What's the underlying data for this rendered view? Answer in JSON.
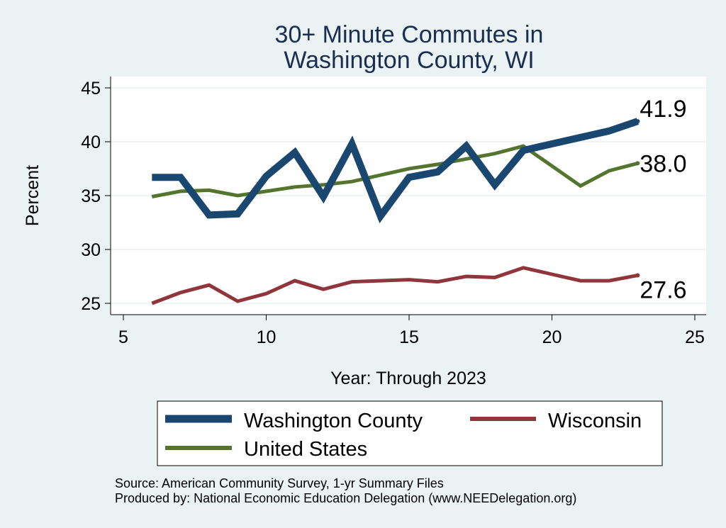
{
  "chart_data": {
    "type": "line",
    "title_line1": "30+ Minute Commutes in",
    "title_line2": "Washington County, WI",
    "xlabel": "Year: Through 2023",
    "ylabel": "Percent",
    "xlim": [
      5,
      25
    ],
    "ylim": [
      24.3,
      46
    ],
    "xticks": [
      5,
      10,
      15,
      20,
      25
    ],
    "yticks": [
      25,
      30,
      35,
      40,
      45
    ],
    "x": [
      6,
      7,
      8,
      9,
      10,
      11,
      12,
      13,
      14,
      15,
      16,
      17,
      18,
      19,
      20,
      21,
      22,
      23
    ],
    "grid": true,
    "series": [
      {
        "name": "Washington County",
        "color": "#1a476f",
        "values": [
          36.7,
          36.7,
          33.2,
          33.3,
          36.8,
          39.0,
          34.9,
          39.8,
          33.1,
          36.7,
          37.2,
          39.6,
          36.0,
          39.2,
          39.8,
          40.4,
          41.0,
          41.9
        ],
        "end_label": "41.9"
      },
      {
        "name": "Wisconsin",
        "color": "#90353b",
        "values": [
          25.0,
          26.0,
          26.7,
          25.2,
          25.9,
          27.1,
          26.3,
          27.0,
          27.1,
          27.2,
          27.0,
          27.5,
          27.4,
          28.3,
          27.7,
          27.1,
          27.1,
          27.6
        ],
        "end_label": "27.6"
      },
      {
        "name": "United States",
        "color": "#55752f",
        "values": [
          34.9,
          35.4,
          35.5,
          35.0,
          35.4,
          35.8,
          36.0,
          36.3,
          36.9,
          37.5,
          37.9,
          38.4,
          38.9,
          39.6,
          null,
          35.9,
          37.3,
          38.0
        ],
        "end_label": "38.0"
      }
    ],
    "legend_position": "bottom",
    "source_line1": "Source: American Community Survey, 1-yr Summary Files",
    "source_line2": "Produced by: National Economic Education Delegation (www.NEEDelegation.org)"
  }
}
